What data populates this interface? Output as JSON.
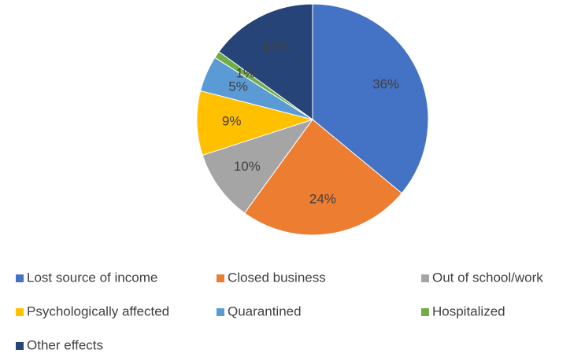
{
  "chart_data": {
    "type": "pie",
    "categories": [
      "Lost source of income",
      "Closed business",
      "Out of school/work",
      "Psychologically affected",
      "Quarantined",
      "Hospitalized",
      "Other effects"
    ],
    "values": [
      36,
      24,
      10,
      9,
      5,
      1,
      15
    ],
    "value_labels": [
      "36%",
      "24%",
      "10%",
      "9%",
      "5%",
      "1%",
      "15%"
    ],
    "colors": [
      "#4472c4",
      "#ed7d31",
      "#a5a5a5",
      "#ffc000",
      "#5b9bd5",
      "#70ad47",
      "#264478"
    ],
    "legend": "bottom"
  }
}
